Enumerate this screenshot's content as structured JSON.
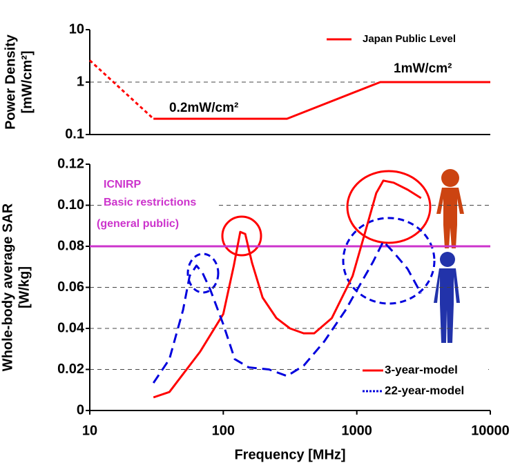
{
  "chart_data": [
    {
      "type": "line",
      "ylabel": [
        "Power Density",
        "[mW/cm²]"
      ],
      "yscale": "log",
      "xscale": "log",
      "xlim": [
        10,
        10000
      ],
      "ylim": [
        0.1,
        10
      ],
      "yticks": [
        0.1,
        1,
        10
      ],
      "grid": true,
      "series": [
        {
          "name": "Japan Public Level",
          "color": "#ff0000",
          "x": [
            30,
            300,
            1500,
            10000
          ],
          "values": [
            0.2,
            0.2,
            1,
            1
          ]
        },
        {
          "color": "#ff0000",
          "dash": true,
          "x": [
            10,
            30
          ],
          "values": [
            2.6,
            0.2
          ]
        }
      ],
      "annotations": [
        "0.2mW/cm²",
        "1mW/cm²"
      ]
    },
    {
      "type": "line",
      "ylabel": [
        "Whole-body average SAR",
        "[W/kg]"
      ],
      "xlabel": "Frequency [MHz]",
      "xscale": "log",
      "xlim": [
        10,
        10000
      ],
      "xticks": [
        10,
        100,
        1000,
        10000
      ],
      "ylim": [
        0,
        0.12
      ],
      "yticks": [
        0,
        0.02,
        0.04,
        0.06,
        0.08,
        {
          "value": 0.1,
          "label": "0.10"
        },
        0.12
      ],
      "grid": true,
      "reference": {
        "value": 0.08,
        "color": "#cc33cc",
        "label": [
          "ICNIRP",
          "Basic restrictions",
          "(general public)"
        ]
      },
      "legend": "lower right",
      "series": [
        {
          "name": "3-year-model",
          "color": "#ff0000",
          "x": [
            30,
            39.5,
            67,
            100,
            120,
            134,
            146,
            164,
            197,
            250,
            316,
            400,
            480,
            650,
            930,
            1180,
            1400,
            1580,
            1890,
            2400,
            3030
          ],
          "values": [
            0.0064,
            0.009,
            0.0286,
            0.047,
            0.0706,
            0.087,
            0.086,
            0.072,
            0.055,
            0.045,
            0.04,
            0.0376,
            0.0376,
            0.045,
            0.0655,
            0.089,
            0.106,
            0.112,
            0.111,
            0.1076,
            0.1035
          ]
        },
        {
          "name": "22-year-model",
          "color": "#0000dd",
          "dash": true,
          "x": [
            30,
            39.5,
            50,
            56,
            63,
            70,
            80,
            100,
            122,
            155,
            220,
            300,
            400,
            570,
            820,
            1040,
            1320,
            1580,
            1890,
            2400,
            3030
          ],
          "values": [
            0.0134,
            0.025,
            0.049,
            0.0655,
            0.0706,
            0.067,
            0.0588,
            0.042,
            0.025,
            0.021,
            0.02,
            0.0168,
            0.0218,
            0.0336,
            0.0487,
            0.0605,
            0.0723,
            0.0824,
            0.077,
            0.069,
            0.057
          ]
        }
      ]
    }
  ]
}
